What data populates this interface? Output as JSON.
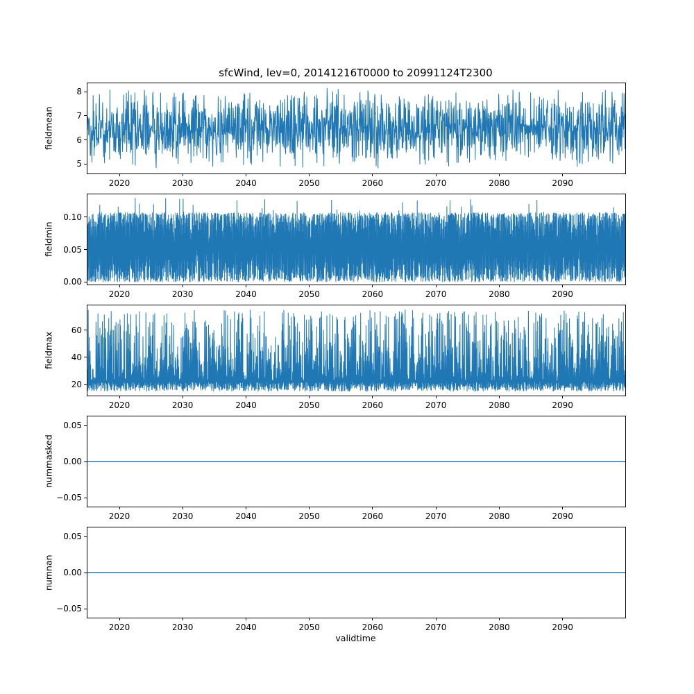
{
  "chart_data": {
    "type": "line",
    "title": "sfcWind, lev=0, 20141216T0000 to 20991124T2300",
    "xlabel": "validtime",
    "xlim": [
      2014.96,
      2099.9
    ],
    "xticks": [
      2020,
      2030,
      2040,
      2050,
      2060,
      2070,
      2080,
      2090
    ],
    "xtick_labels": [
      "2020",
      "2030",
      "2040",
      "2050",
      "2060",
      "2070",
      "2080",
      "2090"
    ],
    "line_color": "#1f77b4",
    "grid": false,
    "legend": "none",
    "subplots": [
      {
        "ylabel": "fieldmean",
        "ylim": [
          4.6,
          8.35
        ],
        "yticks": [
          5,
          6,
          7,
          8
        ],
        "ytick_labels": [
          "5",
          "6",
          "7",
          "8"
        ],
        "description": "dense noisy series oscillating around 6.5, spikes from about 4.8 up to about 8.2",
        "signal": {
          "kind": "triangular",
          "base": 6.5,
          "amp": 1.72,
          "points": 1700,
          "seed": 7
        }
      },
      {
        "ylabel": "fieldmin",
        "ylim": [
          -0.004,
          0.135
        ],
        "yticks": [
          0.0,
          0.05,
          0.1
        ],
        "ytick_labels": [
          "0.00",
          "0.05",
          "0.10"
        ],
        "description": "dense noisy series filling band from 0.00 to about 0.10, occasional peaks near 0.13",
        "signal": {
          "kind": "fillband",
          "low": 0.0,
          "high": 0.107,
          "spike_max": 0.131,
          "spike_prob": 0.025,
          "points": 2400,
          "seed": 11
        }
      },
      {
        "ylabel": "fieldmax",
        "ylim": [
          12,
          78
        ],
        "yticks": [
          20,
          40,
          60
        ],
        "ytick_labels": [
          "20",
          "40",
          "60"
        ],
        "description": "dense noisy series with baseline near 15-22 and frequent spikes to 40-75",
        "signal": {
          "kind": "spikes",
          "base": 15,
          "band": 7,
          "high_min": 23,
          "high_span": 52,
          "peak": 75,
          "points": 2200,
          "seed": 13
        }
      },
      {
        "ylabel": "nummasked",
        "ylim": [
          -0.0625,
          0.0625
        ],
        "yticks": [
          -0.05,
          0.0,
          0.05
        ],
        "ytick_labels": [
          "−0.05",
          "0.00",
          "0.05"
        ],
        "description": "constant line at 0",
        "signal": {
          "kind": "constant",
          "value": 0
        }
      },
      {
        "ylabel": "numnan",
        "ylim": [
          -0.0625,
          0.0625
        ],
        "yticks": [
          -0.05,
          0.0,
          0.05
        ],
        "ytick_labels": [
          "−0.05",
          "0.00",
          "0.05"
        ],
        "description": "constant line at 0",
        "signal": {
          "kind": "constant",
          "value": 0
        }
      }
    ]
  }
}
